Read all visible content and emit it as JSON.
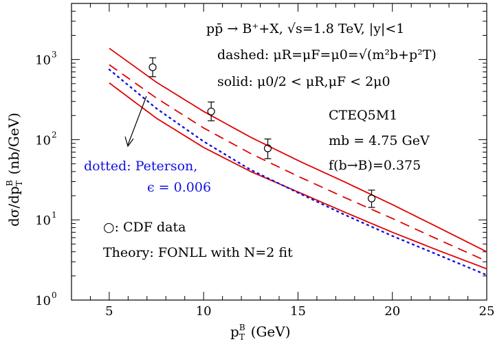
{
  "chart_data": {
    "type": "line",
    "title": "",
    "xlabel_main": "p",
    "xlabel_sub": "T",
    "xlabel_sup": "B",
    "xlabel_unit": "(GeV)",
    "ylabel_main": "dσ/dp",
    "ylabel_sub": "T",
    "ylabel_sup": "B",
    "ylabel_unit": "(nb/GeV)",
    "xlim": [
      3,
      25
    ],
    "ylim": [
      1,
      5000
    ],
    "yscale": "log",
    "x_ticks": [
      "5",
      "10",
      "15",
      "20",
      "25"
    ],
    "y_ticks": [
      {
        "base": "10",
        "exp": "0",
        "value": 1
      },
      {
        "base": "10",
        "exp": "1",
        "value": 10
      },
      {
        "base": "10",
        "exp": "2",
        "value": 100
      },
      {
        "base": "10",
        "exp": "3",
        "value": 1000
      }
    ],
    "annotations": {
      "process": "pp̄ → B⁺+X, √s=1.8 TeV, |y|<1",
      "dashed": "dashed: μR=μF=μ0=√(m²b+p²T)",
      "solid": "solid: μ0/2 < μR,μF < 2μ0",
      "pdf": "CTEQ5M1",
      "mass": "mb = 4.75 GeV",
      "frag": "f(b→B)=0.375",
      "dotted_line1": "dotted: Peterson,",
      "dotted_line2": "ϵ = 0.006",
      "data_label": "○: CDF data",
      "theory": "Theory: FONLL with N=2 fit"
    },
    "colors": {
      "theory": "#e00000",
      "peterson": "#1010e0",
      "data": "#000000"
    },
    "data_points": [
      {
        "x": 7.3,
        "y": 800,
        "ylow": 610,
        "yhigh": 1050
      },
      {
        "x": 10.4,
        "y": 225,
        "ylow": 172,
        "yhigh": 295
      },
      {
        "x": 13.4,
        "y": 78,
        "ylow": 58,
        "yhigh": 102
      },
      {
        "x": 18.9,
        "y": 18.5,
        "ylow": 14.3,
        "yhigh": 23.5
      }
    ],
    "series": [
      {
        "style": "solid",
        "role": "upper",
        "x": [
          5,
          7.5,
          10,
          12.5,
          15,
          17.5,
          20,
          22.5,
          25
        ],
        "values": [
          1380,
          520,
          225,
          107,
          55,
          29.5,
          15.5,
          7.9,
          4.0
        ]
      },
      {
        "style": "dashed",
        "role": "central",
        "x": [
          5,
          7.5,
          10,
          12.5,
          15,
          17.5,
          20,
          22.5,
          25
        ],
        "values": [
          860,
          330,
          140,
          67,
          35,
          18.9,
          10.4,
          5.6,
          3.05
        ]
      },
      {
        "style": "solid",
        "role": "lower",
        "x": [
          5,
          7.5,
          10,
          12.5,
          15,
          17.5,
          20,
          22.5,
          25
        ],
        "values": [
          510,
          185,
          80,
          40,
          22.3,
          12.4,
          7.0,
          4.1,
          2.45
        ]
      },
      {
        "style": "dotted",
        "role": "peterson",
        "x": [
          5,
          7.5,
          10,
          12.5,
          15,
          17.5,
          20,
          22.5,
          25
        ],
        "values": [
          750,
          245,
          95,
          42,
          21.8,
          11.5,
          6.3,
          3.6,
          2.05
        ]
      }
    ]
  }
}
